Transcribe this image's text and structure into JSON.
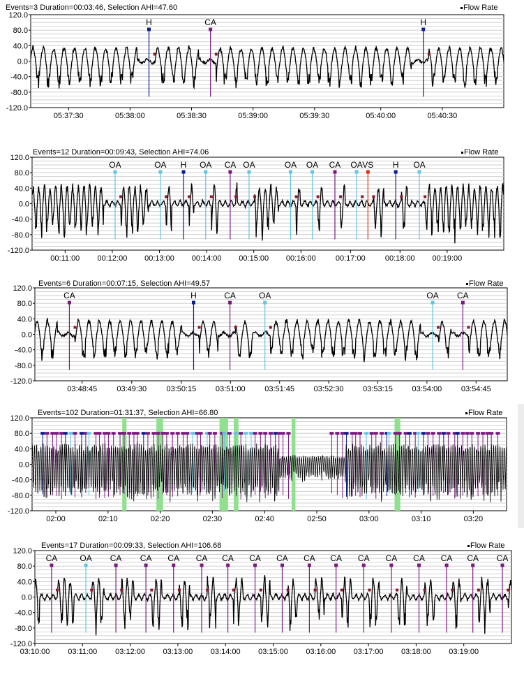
{
  "legend_label": "Flow Rate",
  "colors": {
    "flow": "#000000",
    "grid": "#c8c8c8",
    "H": "#0b1e8c",
    "CA": "#7a1a7f",
    "OA": "#62c6e4",
    "VS": "#e03018",
    "marker_dark": "#8a1a2a",
    "marker_green": "#2a8a2a",
    "marker_yellow": "#e8c000",
    "highlight": "#8fe08f"
  },
  "chart_data": [
    {
      "type": "line",
      "header": "Events=3 Duration=00:03:46, Selection AHI=47.60",
      "ylim": [
        -120,
        120
      ],
      "y_ticks": [
        "120.0",
        "80.0",
        "40.0",
        "0.0",
        "-40.0",
        "-80.0",
        "-120.0"
      ],
      "x_ticks": [
        "05:37:30",
        "05:38:00",
        "05:38:30",
        "05:39:00",
        "05:39:30",
        "05:40:00",
        "05:40:30"
      ],
      "events": [
        {
          "label": "H",
          "type": "H",
          "t": 0.25
        },
        {
          "label": "CA",
          "type": "CA",
          "t": 0.38
        },
        {
          "label": "H",
          "type": "H",
          "t": 0.83
        }
      ]
    },
    {
      "type": "line",
      "header": "Events=12 Duration=00:09:43, Selection AHI=74.06",
      "ylim": [
        -120,
        120
      ],
      "y_ticks": [
        "120.0",
        "80.0",
        "40.0",
        "0.0",
        "-40.0",
        "-80.0",
        "-120.0"
      ],
      "x_ticks": [
        "00:11:00",
        "00:12:00",
        "00:13:00",
        "00:14:00",
        "00:15:00",
        "00:16:00",
        "00:17:00",
        "00:18:00",
        "00:19:00"
      ],
      "events": [
        {
          "label": "OA",
          "type": "OA",
          "t": 0.176
        },
        {
          "label": "OA",
          "type": "OA",
          "t": 0.272
        },
        {
          "label": "H",
          "type": "H",
          "t": 0.321
        },
        {
          "label": "OA",
          "type": "OA",
          "t": 0.368
        },
        {
          "label": "CA",
          "type": "CA",
          "t": 0.42
        },
        {
          "label": "OA",
          "type": "OA",
          "t": 0.46
        },
        {
          "label": "OA",
          "type": "OA",
          "t": 0.548
        },
        {
          "label": "OA",
          "type": "OA",
          "t": 0.594
        },
        {
          "label": "CA",
          "type": "CA",
          "t": 0.642
        },
        {
          "label": "OA",
          "type": "OA",
          "t": 0.688
        },
        {
          "label": "VS",
          "type": "VS",
          "t": 0.712
        },
        {
          "label": "H",
          "type": "H",
          "t": 0.771
        },
        {
          "label": "OA",
          "type": "OA",
          "t": 0.821
        }
      ]
    },
    {
      "type": "line",
      "header": "Events=6 Duration=00:07:15, Selection AHI=49.57",
      "ylim": [
        -120,
        120
      ],
      "y_ticks": [
        "120.0",
        "80.0",
        "40.0",
        "0.0",
        "-40.0",
        "-80.0",
        "-120.0"
      ],
      "x_ticks": [
        "03:48:45",
        "03:49:30",
        "03:50:15",
        "03:51:00",
        "03:51:45",
        "03:52:30",
        "03:53:15",
        "03:54:00",
        "03:54:45"
      ],
      "events": [
        {
          "label": "CA",
          "type": "CA",
          "t": 0.073
        },
        {
          "label": "H",
          "type": "H",
          "t": 0.336
        },
        {
          "label": "CA",
          "type": "CA",
          "t": 0.413
        },
        {
          "label": "OA",
          "type": "OA",
          "t": 0.487
        },
        {
          "label": "OA",
          "type": "OA",
          "t": 0.842
        },
        {
          "label": "CA",
          "type": "CA",
          "t": 0.906
        }
      ]
    },
    {
      "type": "line",
      "header": "Events=102 Duration=01:31:37, Selection AHI=66.80",
      "ylim": [
        -120,
        120
      ],
      "y_ticks": [
        "120.0",
        "80.0",
        "40.0",
        "0.0",
        "-40.0",
        "-80.0",
        "-120.0"
      ],
      "x_ticks": [
        "02:00",
        "02:10",
        "02:20",
        "02:30",
        "02:40",
        "02:50",
        "03:00",
        "03:10",
        "03:20"
      ],
      "events": []
    },
    {
      "type": "line",
      "header": "Events=17 Duration=00:09:33, Selection AHI=106.68",
      "ylim": [
        -120,
        120
      ],
      "y_ticks": [
        "120.0",
        "80.0",
        "40.0",
        "0.0",
        "-40.0",
        "-80.0",
        "-120.0"
      ],
      "x_ticks": [
        "03:10:00",
        "03:11:00",
        "03:12:00",
        "03:13:00",
        "03:14:00",
        "03:15:00",
        "03:16:00",
        "03:17:00",
        "03:18:00",
        "03:19:00"
      ],
      "events": [
        {
          "label": "CA",
          "type": "CA",
          "t": 0.035
        },
        {
          "label": "OA",
          "type": "OA",
          "t": 0.107
        },
        {
          "label": "CA",
          "type": "CA",
          "t": 0.17
        },
        {
          "label": "CA",
          "type": "CA",
          "t": 0.233
        },
        {
          "label": "CA",
          "type": "CA",
          "t": 0.291
        },
        {
          "label": "CA",
          "type": "CA",
          "t": 0.35
        },
        {
          "label": "CA",
          "type": "CA",
          "t": 0.405
        },
        {
          "label": "CA",
          "type": "CA",
          "t": 0.462
        },
        {
          "label": "CA",
          "type": "CA",
          "t": 0.519
        },
        {
          "label": "CA",
          "type": "CA",
          "t": 0.576
        },
        {
          "label": "CA",
          "type": "CA",
          "t": 0.632
        },
        {
          "label": "CA",
          "type": "CA",
          "t": 0.69
        },
        {
          "label": "CA",
          "type": "CA",
          "t": 0.748
        },
        {
          "label": "CA",
          "type": "CA",
          "t": 0.806
        },
        {
          "label": "CA",
          "type": "CA",
          "t": 0.864
        },
        {
          "label": "CA",
          "type": "CA",
          "t": 0.919
        },
        {
          "label": "CA",
          "type": "CA",
          "t": 0.981
        }
      ]
    }
  ]
}
